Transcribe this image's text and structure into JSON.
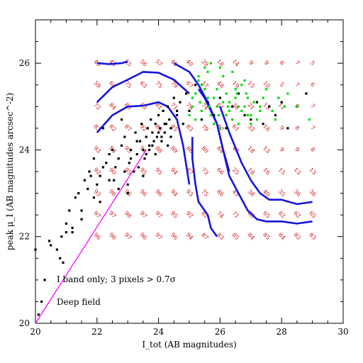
{
  "chart_data": {
    "type": "scatter",
    "xlabel": "I_tot (AB magnitudes)",
    "ylabel": "peak μ_I (AB magnitudes arcsec^-2)",
    "xlim": [
      20,
      30
    ],
    "ylim": [
      20,
      27
    ],
    "x_ticks": [
      "20",
      "22",
      "24",
      "26",
      "28",
      "30"
    ],
    "y_ticks": [
      "20",
      "22",
      "24",
      "26"
    ],
    "annotations": [
      "I band only; 3 pixels > 0.7σ",
      "Deep field"
    ],
    "colors": {
      "black_points": "#000000",
      "green_points": "#00dd00",
      "blue_curves": "#1515dd",
      "magenta_line": "#ff00ff",
      "grid_numbers": "#cc0000"
    },
    "magenta_line": {
      "x": [
        20.0,
        23.6
      ],
      "y": [
        20.0,
        24.0
      ]
    },
    "completeness_grid": {
      "x": [
        22.0,
        22.5,
        23.0,
        23.5,
        24.0,
        24.5,
        25.0,
        25.5,
        26.0,
        26.5,
        27.0,
        27.5,
        28.0,
        28.5,
        29.0
      ],
      "rows": [
        {
          "y": 26.0,
          "values": [
            "46",
            "45",
            "55",
            "56",
            "57",
            "40",
            "40",
            "29",
            "18",
            "14",
            "9",
            "9",
            "6",
            "7",
            "5"
          ]
        },
        {
          "y": 25.5,
          "values": [
            "59",
            "64",
            "75",
            "63",
            "75",
            "79",
            "67",
            "57",
            "48",
            "19",
            "15",
            "10",
            "5",
            "7",
            "6"
          ]
        },
        {
          "y": 25.0,
          "values": [
            "72",
            "84",
            "83",
            "83",
            "81",
            "71",
            "79",
            "74",
            "61",
            "38",
            "21",
            "13",
            "12",
            "9",
            "7"
          ]
        },
        {
          "y": 24.5,
          "values": [
            "83",
            "82",
            "87",
            "92",
            "86",
            "85",
            "83",
            "79",
            "67",
            "61",
            "33",
            "16",
            "9",
            "8",
            "7"
          ]
        },
        {
          "y": 24.0,
          "values": [
            "93",
            "94",
            "95",
            "91",
            "88",
            "89",
            "86",
            "80",
            "84",
            "47",
            "18",
            "13",
            "9",
            "9",
            "8"
          ]
        },
        {
          "y": 23.5,
          "values": [
            "92",
            "90",
            "95",
            "95",
            "95",
            "94",
            "87",
            "73",
            "66",
            "25",
            "18",
            "16",
            "15",
            "13",
            "13"
          ]
        },
        {
          "y": 23.0,
          "values": [
            "93",
            "96",
            "96",
            "96",
            "96",
            "94",
            "93",
            "75",
            "86",
            "45",
            "38",
            "40",
            "35",
            "36",
            "36"
          ]
        },
        {
          "y": 22.5,
          "values": [
            "97",
            "97",
            "98",
            "97",
            "97",
            "95",
            "92",
            "82",
            "74",
            "71",
            "65",
            "65",
            "62",
            "62",
            "65"
          ]
        },
        {
          "y": 22.0,
          "values": [
            "96",
            "96",
            "97",
            "96",
            "97",
            "96",
            "94",
            "87",
            "83",
            "85",
            "84",
            "85",
            "84",
            "82",
            "83"
          ]
        }
      ]
    },
    "contours": [
      {
        "x": [
          22.0,
          22.4,
          22.8,
          23.0
        ],
        "y": [
          26.0,
          25.98,
          26.0,
          26.04
        ]
      },
      {
        "x": [
          22.0,
          22.5,
          23.0,
          23.5,
          24.0,
          24.5,
          25.0
        ],
        "y": [
          25.1,
          25.45,
          25.62,
          25.8,
          25.78,
          25.62,
          25.3
        ]
      },
      {
        "x": [
          22.0,
          22.5,
          23.0,
          23.5,
          24.0,
          24.3,
          24.6,
          24.8,
          25.0
        ],
        "y": [
          24.4,
          24.8,
          25.0,
          25.02,
          25.1,
          25.0,
          24.7,
          24.1,
          23.2
        ]
      },
      {
        "x": [
          24.5,
          25.0,
          25.3,
          25.6,
          25.9,
          26.1,
          26.3
        ],
        "y": [
          26.0,
          25.8,
          25.5,
          25.1,
          24.6,
          24.0,
          23.5
        ]
      },
      {
        "x": [
          25.3,
          25.5,
          25.9,
          26.1,
          26.3,
          26.6,
          26.9,
          27.2,
          27.5,
          28.0,
          28.5,
          29.0
        ],
        "y": [
          25.4,
          25.2,
          24.6,
          24.0,
          23.4,
          23.0,
          22.6,
          22.4,
          22.35,
          22.35,
          22.3,
          22.35
        ]
      },
      {
        "x": [
          26.0,
          26.3,
          26.7,
          27.0,
          27.3,
          27.6,
          28.0,
          28.5,
          29.0
        ],
        "y": [
          25.0,
          24.4,
          23.7,
          23.3,
          23.0,
          22.85,
          22.85,
          22.75,
          22.8
        ]
      },
      {
        "x": [
          25.1,
          25.1,
          25.2,
          25.3,
          25.6,
          25.7,
          25.9
        ],
        "y": [
          24.3,
          23.8,
          23.2,
          22.8,
          22.5,
          22.2,
          22.0
        ]
      }
    ],
    "series": [
      {
        "color": "black",
        "x": [
          20.0,
          20.1,
          20.2,
          20.3,
          20.45,
          20.5,
          20.7,
          20.8,
          20.85,
          20.9,
          21.0,
          21.0,
          21.1,
          21.2,
          21.3,
          21.4,
          21.5,
          21.6,
          21.7,
          21.75,
          21.8,
          21.9,
          22.0,
          22.1,
          22.2,
          22.3,
          22.4,
          22.5,
          22.55,
          22.6,
          22.7,
          22.8,
          22.9,
          23.0,
          23.05,
          23.1,
          23.2,
          23.25,
          23.3,
          23.35,
          23.4,
          23.45,
          23.5,
          23.55,
          23.6,
          23.65,
          23.7,
          23.75,
          23.8,
          23.85,
          23.9,
          23.95,
          24.0,
          24.05,
          24.1,
          24.15,
          24.2,
          24.25,
          24.3,
          24.35,
          24.4,
          24.5,
          24.6,
          24.7,
          24.8,
          24.9,
          25.0,
          25.2,
          25.4,
          25.6,
          25.8,
          26.0,
          26.2,
          26.4,
          26.6,
          26.8,
          27.0,
          27.2,
          27.4,
          27.6,
          27.8,
          28.0,
          28.2,
          28.5,
          28.8,
          23.1,
          23.3,
          23.5,
          23.7,
          23.9,
          24.1,
          24.3,
          22.9,
          23.0,
          22.7,
          22.4,
          21.9,
          21.2,
          22.1,
          23.6,
          23.8,
          24.0,
          24.2,
          24.4,
          24.6,
          22.8,
          22.2,
          21.5
        ],
        "y": [
          21.7,
          20.2,
          20.5,
          21.0,
          21.9,
          21.8,
          21.7,
          21.5,
          22.0,
          21.4,
          22.1,
          22.3,
          22.6,
          22.2,
          22.9,
          23.0,
          22.6,
          23.3,
          23.1,
          23.5,
          23.4,
          23.8,
          23.2,
          23.4,
          23.6,
          23.7,
          23.9,
          24.0,
          23.3,
          23.6,
          23.8,
          24.1,
          24.3,
          23.2,
          23.7,
          24.0,
          23.5,
          24.4,
          23.9,
          23.6,
          24.2,
          24.6,
          24.0,
          23.8,
          24.3,
          24.5,
          24.1,
          24.7,
          24.4,
          24.2,
          24.6,
          24.3,
          24.8,
          24.5,
          24.2,
          24.9,
          24.4,
          24.6,
          25.0,
          24.7,
          24.3,
          25.2,
          24.8,
          25.1,
          24.6,
          25.3,
          24.9,
          25.5,
          24.7,
          25.1,
          24.8,
          25.2,
          24.5,
          25.0,
          25.3,
          24.8,
          24.7,
          25.1,
          24.6,
          25.0,
          24.8,
          25.1,
          24.5,
          25.0,
          25.3,
          23.8,
          24.2,
          23.4,
          24.0,
          23.9,
          24.3,
          24.1,
          23.5,
          23.0,
          23.1,
          23.3,
          22.9,
          22.1,
          22.8,
          23.9,
          24.1,
          24.4,
          24.6,
          24.5,
          24.9,
          24.7,
          24.5,
          22.4
        ]
      },
      {
        "color": "green",
        "x": [
          25.0,
          25.1,
          25.2,
          25.3,
          25.4,
          25.5,
          25.6,
          25.7,
          25.8,
          25.9,
          26.0,
          26.1,
          26.2,
          26.3,
          26.4,
          26.5,
          26.6,
          26.7,
          26.8,
          26.9,
          27.0,
          27.1,
          27.2,
          27.3,
          27.5,
          27.7,
          27.9,
          28.2,
          28.5,
          28.9,
          25.2,
          25.4,
          25.6,
          25.8,
          26.0,
          26.2,
          26.4,
          26.6,
          26.8,
          27.0,
          25.3,
          25.5,
          25.7,
          25.9,
          26.1,
          26.3,
          26.5,
          26.7,
          26.9,
          27.4,
          25.1,
          25.35,
          25.65,
          25.95,
          26.25,
          26.55,
          27.8,
          28.1,
          27.3,
          26.85
        ],
        "y": [
          24.8,
          25.0,
          25.3,
          25.6,
          25.5,
          25.4,
          25.8,
          26.0,
          25.2,
          25.0,
          25.9,
          25.7,
          25.3,
          25.1,
          25.8,
          25.4,
          25.0,
          24.9,
          25.6,
          25.2,
          24.8,
          25.1,
          24.7,
          25.0,
          25.4,
          24.9,
          25.2,
          25.3,
          25.0,
          24.7,
          24.7,
          24.9,
          25.2,
          24.6,
          24.5,
          24.8,
          24.7,
          24.6,
          25.0,
          24.6,
          25.7,
          25.9,
          24.8,
          25.4,
          25.1,
          24.9,
          25.2,
          25.5,
          24.8,
          25.2,
          25.2,
          25.1,
          25.0,
          24.8,
          25.0,
          25.3,
          24.7,
          25.0,
          24.9,
          25.3
        ]
      }
    ]
  }
}
